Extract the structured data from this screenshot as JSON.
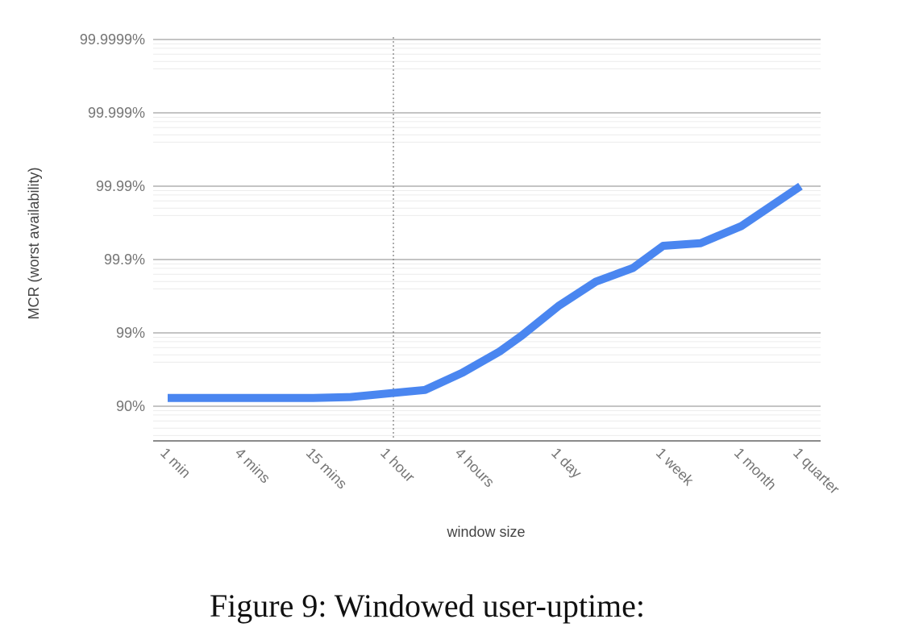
{
  "figure": {
    "caption": "Figure 9: Windowed user-uptime:"
  },
  "chart_data": {
    "type": "line",
    "title": "",
    "xlabel": "window size",
    "ylabel": "MCR (worst availability)",
    "y_scale": "log-nines",
    "y_ticks": [
      {
        "label": "90%",
        "nines": 1
      },
      {
        "label": "99%",
        "nines": 2
      },
      {
        "label": "99.9%",
        "nines": 3
      },
      {
        "label": "99.99%",
        "nines": 4
      },
      {
        "label": "99.999%",
        "nines": 5
      },
      {
        "label": "99.9999%",
        "nines": 6
      }
    ],
    "ylim_nines": [
      0.5,
      6
    ],
    "x_tick_labels": [
      "1 min",
      "4 mins",
      "15 mins",
      "1 hour",
      "4 hours",
      "1 day",
      "1 week",
      "1 month",
      "1 quarter"
    ],
    "reference_line": {
      "x_label": "1 hour",
      "style": "dotted"
    },
    "grid": true,
    "series": [
      {
        "color": "#4a86f0",
        "points": [
          {
            "x": "1 min",
            "y": "92.3%"
          },
          {
            "x": "4 mins",
            "y": "92.3%"
          },
          {
            "x": "15 mins",
            "y": "92.3%"
          },
          {
            "x": "30 mins",
            "y": "92.5%"
          },
          {
            "x": "1 hour",
            "y": "93.3%"
          },
          {
            "x": "2 hours",
            "y": "94.0%"
          },
          {
            "x": "4 hours",
            "y": "96.5%"
          },
          {
            "x": "8 hours",
            "y": "98.2%"
          },
          {
            "x": "12 hours",
            "y": "98.9%"
          },
          {
            "x": "1 day",
            "y": "99.57%"
          },
          {
            "x": "2 days",
            "y": "99.80%"
          },
          {
            "x": "4 days",
            "y": "99.87%"
          },
          {
            "x": "1 week",
            "y": "99.935%"
          },
          {
            "x": "2 weeks",
            "y": "99.940%"
          },
          {
            "x": "1 month",
            "y": "99.965%"
          },
          {
            "x": "1 quarter",
            "y": "99.990%"
          }
        ]
      }
    ]
  }
}
